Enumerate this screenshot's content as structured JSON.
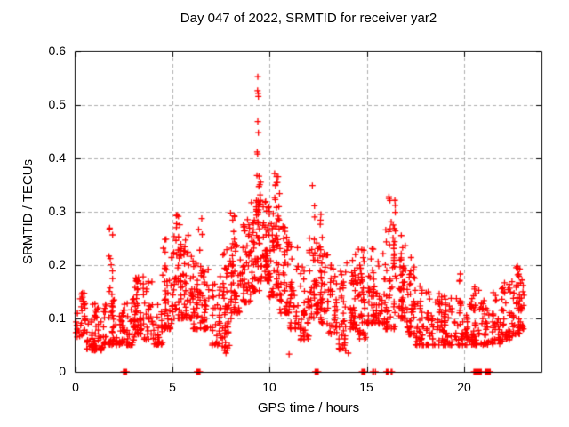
{
  "chart_data": {
    "type": "scatter",
    "title": "Day 047 of 2022, SRMTID for receiver yar2",
    "xlabel": "GPS time / hours",
    "ylabel": "SRMTID / TECUs",
    "xlim": [
      0,
      24
    ],
    "ylim": [
      0,
      0.6
    ],
    "x_ticks": [
      0,
      5,
      10,
      15,
      20
    ],
    "x_tick_labels": [
      "0",
      "5",
      "10",
      "15",
      "20"
    ],
    "y_ticks": [
      0,
      0.1,
      0.2,
      0.3,
      0.4,
      0.5,
      0.6
    ],
    "y_tick_labels": [
      "0",
      "0.1",
      "0.2",
      "0.3",
      "0.4",
      "0.5",
      "0.6"
    ],
    "grid": true,
    "legend": "none",
    "marker": "plus",
    "colors": {
      "marker": "#ff0000",
      "grid": "#b0b0b0",
      "axis": "#000000",
      "background": "#ffffff",
      "text": "#000000"
    },
    "density_bins_format": "[x_start_hour, x_end_hour, n_points, y_min_TECUs, y_max_TECUs]",
    "density_bins": [
      [
        0.0,
        0.5,
        36,
        0.065,
        0.15
      ],
      [
        0.5,
        1.0,
        34,
        0.04,
        0.13
      ],
      [
        1.0,
        1.5,
        34,
        0.04,
        0.13
      ],
      [
        1.5,
        2.0,
        34,
        0.05,
        0.14
      ],
      [
        2.0,
        2.5,
        34,
        0.05,
        0.12
      ],
      [
        2.5,
        3.0,
        34,
        0.05,
        0.14
      ],
      [
        3.0,
        3.5,
        34,
        0.07,
        0.19
      ],
      [
        3.5,
        4.0,
        32,
        0.06,
        0.17
      ],
      [
        4.0,
        4.5,
        32,
        0.05,
        0.14
      ],
      [
        4.5,
        5.0,
        34,
        0.08,
        0.22
      ],
      [
        5.0,
        5.5,
        36,
        0.1,
        0.26
      ],
      [
        5.5,
        6.0,
        36,
        0.1,
        0.23
      ],
      [
        6.0,
        6.5,
        34,
        0.08,
        0.21
      ],
      [
        6.5,
        7.0,
        32,
        0.08,
        0.2
      ],
      [
        7.0,
        7.5,
        34,
        0.05,
        0.18
      ],
      [
        7.5,
        8.0,
        36,
        0.04,
        0.2
      ],
      [
        8.0,
        8.5,
        38,
        0.11,
        0.25
      ],
      [
        8.5,
        9.0,
        38,
        0.13,
        0.28
      ],
      [
        9.0,
        9.5,
        40,
        0.15,
        0.33
      ],
      [
        9.5,
        10.0,
        40,
        0.17,
        0.31
      ],
      [
        10.0,
        10.5,
        40,
        0.14,
        0.3
      ],
      [
        10.5,
        11.0,
        36,
        0.11,
        0.27
      ],
      [
        11.0,
        11.5,
        34,
        0.08,
        0.24
      ],
      [
        11.5,
        12.0,
        34,
        0.06,
        0.2
      ],
      [
        12.0,
        12.5,
        36,
        0.1,
        0.26
      ],
      [
        12.5,
        13.0,
        34,
        0.09,
        0.24
      ],
      [
        13.0,
        13.5,
        34,
        0.07,
        0.2
      ],
      [
        13.5,
        14.0,
        34,
        0.04,
        0.19
      ],
      [
        14.0,
        14.5,
        34,
        0.08,
        0.22
      ],
      [
        14.5,
        15.0,
        34,
        0.06,
        0.23
      ],
      [
        15.0,
        15.5,
        34,
        0.09,
        0.24
      ],
      [
        15.5,
        16.0,
        34,
        0.09,
        0.23
      ],
      [
        16.0,
        16.5,
        36,
        0.08,
        0.27
      ],
      [
        16.5,
        17.0,
        34,
        0.1,
        0.24
      ],
      [
        17.0,
        17.5,
        34,
        0.07,
        0.2
      ],
      [
        17.5,
        18.0,
        32,
        0.05,
        0.17
      ],
      [
        18.0,
        18.5,
        32,
        0.05,
        0.15
      ],
      [
        18.5,
        19.0,
        32,
        0.05,
        0.15
      ],
      [
        19.0,
        19.5,
        32,
        0.05,
        0.14
      ],
      [
        19.5,
        20.0,
        30,
        0.05,
        0.14
      ],
      [
        20.0,
        20.5,
        32,
        0.05,
        0.14
      ],
      [
        20.5,
        21.0,
        32,
        0.05,
        0.16
      ],
      [
        21.0,
        21.5,
        32,
        0.05,
        0.15
      ],
      [
        21.5,
        22.0,
        32,
        0.05,
        0.16
      ],
      [
        22.0,
        22.5,
        32,
        0.06,
        0.17
      ],
      [
        22.5,
        23.0,
        34,
        0.07,
        0.19
      ],
      [
        23.0,
        23.15,
        10,
        0.08,
        0.18
      ]
    ],
    "column_clusters_format": "[x_center_hour, x_width_hour, n_points, y_min_TECUs, y_max_TECUs]",
    "column_clusters": [
      [
        1.8,
        0.25,
        14,
        0.1,
        0.27
      ],
      [
        3.25,
        0.3,
        10,
        0.12,
        0.195
      ],
      [
        4.6,
        0.25,
        12,
        0.12,
        0.25
      ],
      [
        5.25,
        0.35,
        18,
        0.15,
        0.3
      ],
      [
        5.7,
        0.25,
        8,
        0.15,
        0.27
      ],
      [
        6.45,
        0.35,
        14,
        0.14,
        0.29
      ],
      [
        7.7,
        0.25,
        10,
        0.1,
        0.25
      ],
      [
        8.1,
        0.3,
        14,
        0.1,
        0.3
      ],
      [
        8.85,
        0.25,
        10,
        0.18,
        0.3
      ],
      [
        9.4,
        0.2,
        14,
        0.2,
        0.33
      ],
      [
        9.45,
        0.25,
        12,
        0.3,
        0.37
      ],
      [
        9.8,
        0.3,
        16,
        0.2,
        0.32
      ],
      [
        10.4,
        0.3,
        12,
        0.3,
        0.375
      ],
      [
        10.3,
        0.3,
        14,
        0.18,
        0.3
      ],
      [
        10.8,
        0.25,
        10,
        0.15,
        0.28
      ],
      [
        12.25,
        0.2,
        12,
        0.12,
        0.35
      ],
      [
        12.6,
        0.25,
        12,
        0.12,
        0.3
      ],
      [
        14.35,
        0.25,
        8,
        0.1,
        0.22
      ],
      [
        14.75,
        0.25,
        10,
        0.1,
        0.25
      ],
      [
        15.25,
        0.3,
        10,
        0.12,
        0.27
      ],
      [
        16.3,
        0.35,
        22,
        0.1,
        0.34
      ],
      [
        16.75,
        0.3,
        12,
        0.12,
        0.26
      ],
      [
        17.4,
        0.3,
        10,
        0.1,
        0.23
      ],
      [
        19.78,
        0.08,
        4,
        0.17,
        0.2
      ],
      [
        20.9,
        0.2,
        5,
        0.1,
        0.17
      ],
      [
        22.8,
        0.3,
        14,
        0.09,
        0.2
      ]
    ],
    "peak_points_format": "[x_hour, y_TECUs]",
    "peak_points": [
      [
        9.39,
        0.553
      ],
      [
        9.38,
        0.527
      ],
      [
        9.41,
        0.522
      ],
      [
        9.42,
        0.516
      ],
      [
        9.39,
        0.469
      ],
      [
        9.42,
        0.448
      ],
      [
        9.36,
        0.412
      ],
      [
        9.38,
        0.408
      ],
      [
        11.0,
        0.033
      ],
      [
        7.75,
        0.035
      ],
      [
        13.9,
        0.04
      ],
      [
        14.05,
        0.035
      ]
    ],
    "zero_axis_clusters_format": "[x_hour, n_overlapping_points_at_y0]",
    "zero_axis_clusters": [
      [
        2.55,
        5
      ],
      [
        6.33,
        5
      ],
      [
        12.42,
        5
      ],
      [
        14.83,
        5
      ],
      [
        15.33,
        2
      ],
      [
        15.45,
        1
      ],
      [
        16.05,
        3
      ],
      [
        16.28,
        2
      ],
      [
        20.62,
        6
      ],
      [
        20.8,
        6
      ],
      [
        21.17,
        4
      ],
      [
        21.32,
        3
      ]
    ]
  }
}
